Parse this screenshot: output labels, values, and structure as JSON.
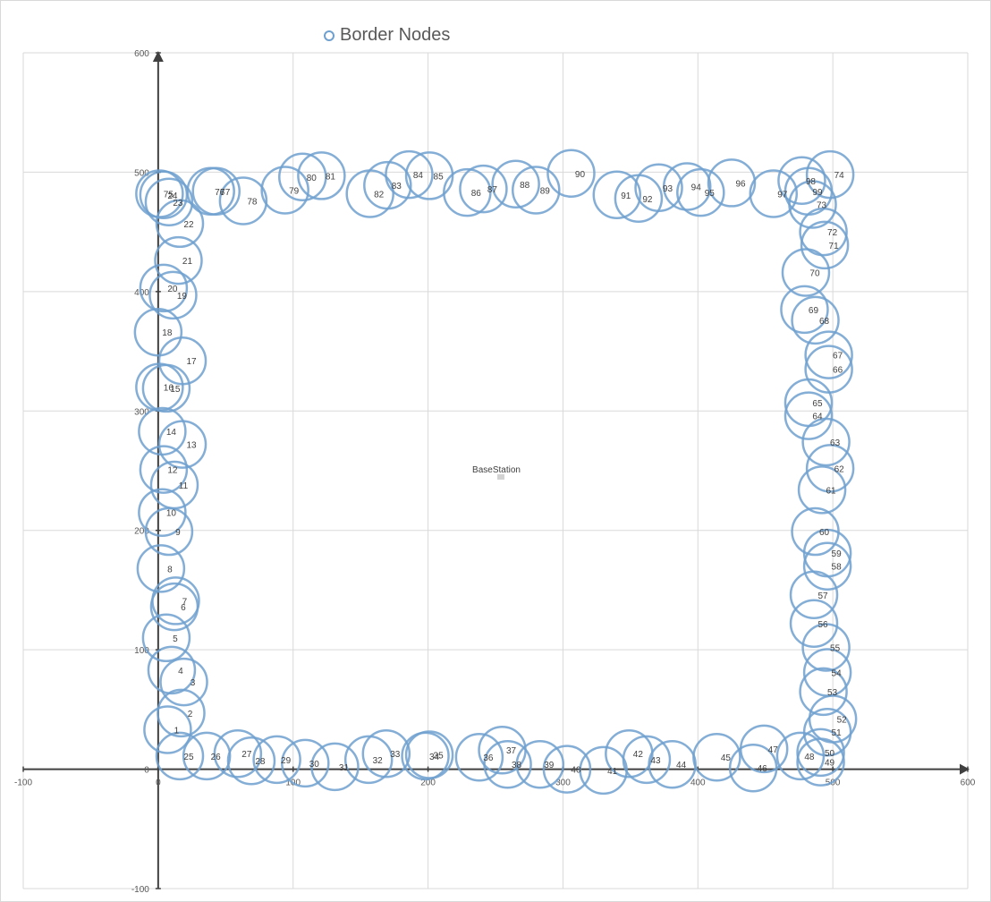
{
  "chart_data": {
    "type": "scatter",
    "title": "",
    "legend": {
      "label": "Border Nodes",
      "position": "top"
    },
    "xlim": [
      -100,
      600
    ],
    "ylim": [
      -100,
      600
    ],
    "x_ticks": [
      -100,
      0,
      100,
      200,
      300,
      400,
      500,
      600
    ],
    "y_ticks": [
      -100,
      0,
      100,
      200,
      300,
      400,
      500,
      600
    ],
    "x_tick_labels": [
      "-100",
      "0",
      "100",
      "200",
      "300",
      "400",
      "500",
      "600"
    ],
    "y_tick_labels": [
      "-100",
      "0",
      "100",
      "200",
      "300",
      "400",
      "500",
      "600"
    ],
    "grid": true,
    "marker_radius": 26,
    "marker_color": "#6fa0cf",
    "axis_color": "#404040",
    "grid_color": "#d9d9d9",
    "base_station": {
      "label": "BaseStation",
      "x": 250,
      "y": 250
    },
    "points": [
      {
        "id": "1",
        "x": 7,
        "y": 33
      },
      {
        "id": "2",
        "x": 17,
        "y": 47
      },
      {
        "id": "3",
        "x": 19,
        "y": 73
      },
      {
        "id": "4",
        "x": 10,
        "y": 83
      },
      {
        "id": "5",
        "x": 6,
        "y": 110
      },
      {
        "id": "6",
        "x": 12,
        "y": 136
      },
      {
        "id": "7",
        "x": 13,
        "y": 141
      },
      {
        "id": "8",
        "x": 2,
        "y": 168
      },
      {
        "id": "9",
        "x": 8,
        "y": 199
      },
      {
        "id": "10",
        "x": 3,
        "y": 215
      },
      {
        "id": "11",
        "x": 12,
        "y": 238
      },
      {
        "id": "12",
        "x": 4,
        "y": 251
      },
      {
        "id": "13",
        "x": 18,
        "y": 272
      },
      {
        "id": "14",
        "x": 3,
        "y": 283
      },
      {
        "id": "15",
        "x": 6,
        "y": 319
      },
      {
        "id": "16",
        "x": 1,
        "y": 320
      },
      {
        "id": "17",
        "x": 18,
        "y": 342
      },
      {
        "id": "18",
        "x": 0,
        "y": 366
      },
      {
        "id": "19",
        "x": 11,
        "y": 397
      },
      {
        "id": "20",
        "x": 4,
        "y": 403
      },
      {
        "id": "21",
        "x": 15,
        "y": 426
      },
      {
        "id": "22",
        "x": 16,
        "y": 457
      },
      {
        "id": "23",
        "x": 8,
        "y": 475
      },
      {
        "id": "24",
        "x": 4,
        "y": 481
      },
      {
        "id": "25",
        "x": 16,
        "y": 11
      },
      {
        "id": "26",
        "x": 36,
        "y": 11
      },
      {
        "id": "27",
        "x": 59,
        "y": 13
      },
      {
        "id": "28",
        "x": 69,
        "y": 7
      },
      {
        "id": "29",
        "x": 88,
        "y": 8
      },
      {
        "id": "30",
        "x": 109,
        "y": 5
      },
      {
        "id": "31",
        "x": 131,
        "y": 2
      },
      {
        "id": "32",
        "x": 156,
        "y": 8
      },
      {
        "id": "33",
        "x": 169,
        "y": 13
      },
      {
        "id": "34",
        "x": 198,
        "y": 11
      },
      {
        "id": "35",
        "x": 201,
        "y": 12
      },
      {
        "id": "36",
        "x": 238,
        "y": 10
      },
      {
        "id": "37",
        "x": 255,
        "y": 16
      },
      {
        "id": "38",
        "x": 259,
        "y": 4
      },
      {
        "id": "39",
        "x": 283,
        "y": 4
      },
      {
        "id": "40",
        "x": 303,
        "y": 0
      },
      {
        "id": "41",
        "x": 330,
        "y": -1
      },
      {
        "id": "42",
        "x": 349,
        "y": 13
      },
      {
        "id": "43",
        "x": 362,
        "y": 8
      },
      {
        "id": "44",
        "x": 381,
        "y": 4
      },
      {
        "id": "45",
        "x": 414,
        "y": 10
      },
      {
        "id": "46",
        "x": 441,
        "y": 1
      },
      {
        "id": "47",
        "x": 449,
        "y": 17
      },
      {
        "id": "48",
        "x": 476,
        "y": 11
      },
      {
        "id": "49",
        "x": 491,
        "y": 6
      },
      {
        "id": "50",
        "x": 491,
        "y": 14
      },
      {
        "id": "51",
        "x": 496,
        "y": 31
      },
      {
        "id": "52",
        "x": 500,
        "y": 42
      },
      {
        "id": "53",
        "x": 493,
        "y": 65
      },
      {
        "id": "54",
        "x": 496,
        "y": 81
      },
      {
        "id": "55",
        "x": 495,
        "y": 102
      },
      {
        "id": "56",
        "x": 486,
        "y": 122
      },
      {
        "id": "57",
        "x": 486,
        "y": 146
      },
      {
        "id": "58",
        "x": 496,
        "y": 170
      },
      {
        "id": "59",
        "x": 496,
        "y": 181
      },
      {
        "id": "60",
        "x": 487,
        "y": 199
      },
      {
        "id": "61",
        "x": 492,
        "y": 234
      },
      {
        "id": "62",
        "x": 498,
        "y": 252
      },
      {
        "id": "63",
        "x": 495,
        "y": 274
      },
      {
        "id": "64",
        "x": 482,
        "y": 296
      },
      {
        "id": "65",
        "x": 482,
        "y": 307
      },
      {
        "id": "66",
        "x": 497,
        "y": 335
      },
      {
        "id": "67",
        "x": 497,
        "y": 347
      },
      {
        "id": "68",
        "x": 487,
        "y": 376
      },
      {
        "id": "69",
        "x": 479,
        "y": 385
      },
      {
        "id": "70",
        "x": 480,
        "y": 416
      },
      {
        "id": "71",
        "x": 494,
        "y": 439
      },
      {
        "id": "72",
        "x": 493,
        "y": 450
      },
      {
        "id": "73",
        "x": 485,
        "y": 473
      },
      {
        "id": "74",
        "x": 498,
        "y": 498
      },
      {
        "id": "75",
        "x": 1,
        "y": 482
      },
      {
        "id": "76",
        "x": 39,
        "y": 484
      },
      {
        "id": "77",
        "x": 43,
        "y": 484
      },
      {
        "id": "78",
        "x": 63,
        "y": 476
      },
      {
        "id": "79",
        "x": 94,
        "y": 485
      },
      {
        "id": "80",
        "x": 107,
        "y": 496
      },
      {
        "id": "81",
        "x": 121,
        "y": 497
      },
      {
        "id": "82",
        "x": 157,
        "y": 482
      },
      {
        "id": "83",
        "x": 170,
        "y": 489
      },
      {
        "id": "84",
        "x": 186,
        "y": 498
      },
      {
        "id": "85",
        "x": 201,
        "y": 497
      },
      {
        "id": "86",
        "x": 229,
        "y": 483
      },
      {
        "id": "87",
        "x": 241,
        "y": 486
      },
      {
        "id": "88",
        "x": 265,
        "y": 490
      },
      {
        "id": "89",
        "x": 280,
        "y": 485
      },
      {
        "id": "90",
        "x": 306,
        "y": 499
      },
      {
        "id": "91",
        "x": 340,
        "y": 481
      },
      {
        "id": "92",
        "x": 356,
        "y": 478
      },
      {
        "id": "93",
        "x": 371,
        "y": 487
      },
      {
        "id": "94",
        "x": 392,
        "y": 488
      },
      {
        "id": "95",
        "x": 402,
        "y": 483
      },
      {
        "id": "96",
        "x": 425,
        "y": 491
      },
      {
        "id": "97",
        "x": 456,
        "y": 482
      },
      {
        "id": "98",
        "x": 477,
        "y": 493
      },
      {
        "id": "99",
        "x": 482,
        "y": 484
      }
    ]
  }
}
